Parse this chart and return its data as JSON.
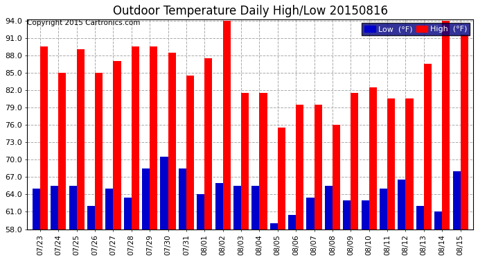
{
  "title": "Outdoor Temperature Daily High/Low 20150816",
  "copyright": "Copyright 2015 Cartronics.com",
  "legend_low": "Low  (°F)",
  "legend_high": "High  (°F)",
  "dates": [
    "07/23",
    "07/24",
    "07/25",
    "07/26",
    "07/27",
    "07/28",
    "07/29",
    "07/30",
    "07/31",
    "08/01",
    "08/02",
    "08/03",
    "08/04",
    "08/05",
    "08/06",
    "08/07",
    "08/08",
    "08/09",
    "08/10",
    "08/11",
    "08/12",
    "08/13",
    "08/14",
    "08/15"
  ],
  "highs": [
    89.5,
    85.0,
    89.0,
    85.0,
    87.0,
    89.5,
    89.5,
    88.5,
    84.5,
    87.5,
    94.0,
    81.5,
    81.5,
    75.5,
    79.5,
    79.5,
    76.0,
    81.5,
    82.5,
    80.5,
    80.5,
    86.5,
    94.0,
    91.5
  ],
  "lows": [
    65.0,
    65.5,
    65.5,
    62.0,
    65.0,
    63.5,
    68.5,
    70.5,
    68.5,
    64.0,
    66.0,
    65.5,
    65.5,
    59.0,
    60.5,
    63.5,
    65.5,
    63.0,
    63.0,
    65.0,
    66.5,
    62.0,
    61.0,
    68.0
  ],
  "ylim_min": 58.0,
  "ylim_max": 94.0,
  "yticks": [
    58.0,
    61.0,
    64.0,
    67.0,
    70.0,
    73.0,
    76.0,
    79.0,
    82.0,
    85.0,
    88.0,
    91.0,
    94.0
  ],
  "bar_color_high": "#ff0000",
  "bar_color_low": "#0000cc",
  "background_color": "#ffffff",
  "grid_color": "#aaaaaa",
  "title_fontsize": 12,
  "copyright_fontsize": 7.5,
  "fig_width": 6.9,
  "fig_height": 3.75,
  "dpi": 100
}
